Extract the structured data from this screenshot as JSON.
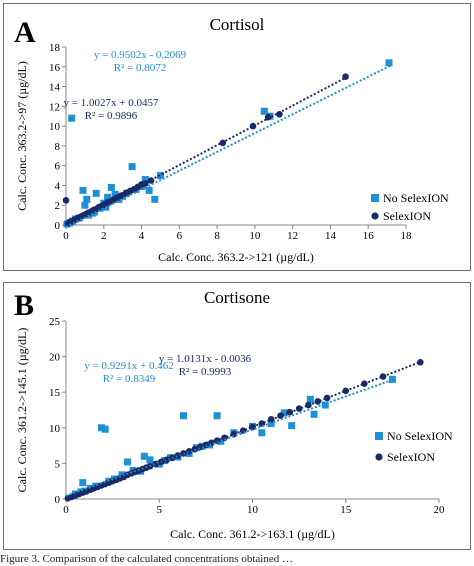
{
  "chart_data": [
    {
      "type": "scatter",
      "panel_letter": "A",
      "title": "Cortisol",
      "xlabel": "Calc. Conc. 363.2->121 (µg/dL)",
      "ylabel": "Calc. Conc. 363.2->97 (µg/dL)",
      "xlim": [
        0,
        18
      ],
      "ylim": [
        0,
        18
      ],
      "xticks": [
        0,
        2,
        4,
        6,
        8,
        10,
        12,
        14,
        16,
        18
      ],
      "yticks": [
        0,
        2,
        4,
        6,
        8,
        10,
        12,
        14,
        16,
        18
      ],
      "grid": false,
      "legend_position": "right",
      "series": [
        {
          "name": "No SelexION",
          "color": "#1f8fd6",
          "marker": "square",
          "trendline": {
            "slope": 0.9502,
            "intercept": -0.2069,
            "equation": "y = 0.9502x - 0.2069",
            "r2": "R² = 0.8072"
          },
          "points": [
            [
              0.3,
              10.8
            ],
            [
              0.05,
              0.1
            ],
            [
              0.2,
              0.2
            ],
            [
              0.35,
              0.4
            ],
            [
              0.5,
              0.6
            ],
            [
              0.7,
              0.7
            ],
            [
              0.9,
              3.5
            ],
            [
              1.0,
              2.0
            ],
            [
              1.1,
              2.6
            ],
            [
              1.2,
              1.0
            ],
            [
              1.4,
              1.2
            ],
            [
              1.6,
              3.2
            ],
            [
              1.8,
              1.7
            ],
            [
              2.0,
              2.2
            ],
            [
              2.2,
              2.8
            ],
            [
              2.4,
              3.8
            ],
            [
              2.6,
              3.1
            ],
            [
              2.8,
              2.6
            ],
            [
              3.0,
              2.9
            ],
            [
              3.2,
              3.2
            ],
            [
              3.5,
              5.9
            ],
            [
              3.7,
              3.6
            ],
            [
              4.0,
              3.9
            ],
            [
              4.2,
              4.6
            ],
            [
              4.4,
              3.5
            ],
            [
              4.7,
              2.6
            ],
            [
              5.0,
              5.0
            ],
            [
              10.5,
              11.5
            ],
            [
              10.8,
              11.0
            ],
            [
              17.1,
              16.4
            ],
            [
              1.5,
              1.3
            ],
            [
              2.1,
              1.8
            ]
          ]
        },
        {
          "name": "SelexION",
          "color": "#1a2a66",
          "marker": "circle",
          "trendline": {
            "slope": 1.0027,
            "intercept": 0.0457,
            "equation": "y = 1.0027x + 0.0457",
            "r2": "R² = 0.9896"
          },
          "points": [
            [
              0.0,
              2.5
            ],
            [
              0.1,
              0.15
            ],
            [
              0.2,
              0.3
            ],
            [
              0.3,
              0.35
            ],
            [
              0.4,
              0.45
            ],
            [
              0.5,
              0.55
            ],
            [
              0.6,
              0.7
            ],
            [
              0.7,
              0.75
            ],
            [
              0.8,
              0.85
            ],
            [
              0.9,
              0.95
            ],
            [
              1.0,
              1.05
            ],
            [
              1.1,
              1.15
            ],
            [
              1.2,
              1.25
            ],
            [
              1.3,
              1.3
            ],
            [
              1.4,
              1.45
            ],
            [
              1.5,
              1.55
            ],
            [
              1.6,
              1.6
            ],
            [
              1.7,
              1.75
            ],
            [
              1.8,
              1.85
            ],
            [
              1.9,
              1.9
            ],
            [
              2.0,
              2.05
            ],
            [
              2.1,
              2.1
            ],
            [
              2.2,
              2.3
            ],
            [
              2.3,
              2.35
            ],
            [
              2.4,
              2.4
            ],
            [
              2.5,
              2.55
            ],
            [
              2.6,
              2.6
            ],
            [
              2.7,
              2.75
            ],
            [
              2.8,
              2.8
            ],
            [
              2.9,
              2.95
            ],
            [
              3.0,
              3.0
            ],
            [
              3.2,
              3.25
            ],
            [
              3.4,
              3.45
            ],
            [
              3.6,
              3.6
            ],
            [
              3.8,
              3.85
            ],
            [
              4.0,
              4.1
            ],
            [
              4.2,
              4.2
            ],
            [
              4.5,
              4.5
            ],
            [
              8.3,
              8.3
            ],
            [
              9.9,
              10.0
            ],
            [
              10.7,
              10.9
            ],
            [
              11.3,
              11.2
            ],
            [
              14.8,
              15.0
            ]
          ]
        }
      ]
    },
    {
      "type": "scatter",
      "panel_letter": "B",
      "title": "Cortisone",
      "xlabel": "Calc. Conc. 361.2->163.1 (µg/dL)",
      "ylabel": "Calc. Conc. 361.2->145.1 (µg/dL)",
      "xlim": [
        0,
        20
      ],
      "ylim": [
        0,
        25
      ],
      "xticks": [
        0,
        5,
        10,
        15,
        20
      ],
      "yticks": [
        0,
        5,
        10,
        15,
        20,
        25
      ],
      "grid": false,
      "legend_position": "right",
      "series": [
        {
          "name": "No SelexION",
          "color": "#1f8fd6",
          "marker": "square",
          "trendline": {
            "slope": 0.9291,
            "intercept": 0.462,
            "equation": "y = 0.9291x + 0.462",
            "r2": "R² = 0.8349"
          },
          "points": [
            [
              0.5,
              0.7
            ],
            [
              0.8,
              1.0
            ],
            [
              0.9,
              2.3
            ],
            [
              1.0,
              1.1
            ],
            [
              1.3,
              1.5
            ],
            [
              1.6,
              1.8
            ],
            [
              1.9,
              10.0
            ],
            [
              2.1,
              9.8
            ],
            [
              2.3,
              2.5
            ],
            [
              2.6,
              2.8
            ],
            [
              3.0,
              3.4
            ],
            [
              3.3,
              5.2
            ],
            [
              3.6,
              4.0
            ],
            [
              4.0,
              3.9
            ],
            [
              4.2,
              6.0
            ],
            [
              4.5,
              5.5
            ],
            [
              5.0,
              4.9
            ],
            [
              5.3,
              5.4
            ],
            [
              5.6,
              5.8
            ],
            [
              6.0,
              5.9
            ],
            [
              6.3,
              11.7
            ],
            [
              6.6,
              6.4
            ],
            [
              7.0,
              7.2
            ],
            [
              7.3,
              7.4
            ],
            [
              7.7,
              7.6
            ],
            [
              8.1,
              11.7
            ],
            [
              8.3,
              8.1
            ],
            [
              9.0,
              9.3
            ],
            [
              10.0,
              10.2
            ],
            [
              10.5,
              9.3
            ],
            [
              11.0,
              10.6
            ],
            [
              11.7,
              12.1
            ],
            [
              12.1,
              10.3
            ],
            [
              13.1,
              14.0
            ],
            [
              13.3,
              11.9
            ],
            [
              13.9,
              13.2
            ],
            [
              17.5,
              16.8
            ]
          ]
        },
        {
          "name": "SelexION",
          "color": "#1a2a66",
          "marker": "circle",
          "trendline": {
            "slope": 1.0131,
            "intercept": -0.0036,
            "equation": "y = 1.0131x - 0.0036",
            "r2": "R² = 0.9993"
          },
          "points": [
            [
              0.1,
              0.1
            ],
            [
              0.3,
              0.3
            ],
            [
              0.5,
              0.5
            ],
            [
              0.7,
              0.7
            ],
            [
              0.9,
              0.9
            ],
            [
              1.1,
              1.1
            ],
            [
              1.3,
              1.3
            ],
            [
              1.5,
              1.5
            ],
            [
              1.7,
              1.7
            ],
            [
              1.9,
              1.9
            ],
            [
              2.1,
              2.1
            ],
            [
              2.3,
              2.3
            ],
            [
              2.5,
              2.5
            ],
            [
              2.7,
              2.7
            ],
            [
              2.9,
              2.9
            ],
            [
              3.1,
              3.1
            ],
            [
              3.3,
              3.4
            ],
            [
              3.5,
              3.6
            ],
            [
              3.7,
              3.8
            ],
            [
              3.9,
              4.0
            ],
            [
              4.1,
              4.2
            ],
            [
              4.3,
              4.4
            ],
            [
              4.5,
              4.6
            ],
            [
              4.8,
              4.9
            ],
            [
              5.1,
              5.2
            ],
            [
              5.4,
              5.5
            ],
            [
              5.7,
              5.8
            ],
            [
              6.0,
              6.1
            ],
            [
              6.3,
              6.4
            ],
            [
              6.6,
              6.7
            ],
            [
              6.9,
              7.0
            ],
            [
              7.2,
              7.3
            ],
            [
              7.5,
              7.6
            ],
            [
              7.8,
              7.9
            ],
            [
              8.1,
              8.2
            ],
            [
              8.5,
              8.6
            ],
            [
              9.0,
              9.1
            ],
            [
              9.5,
              9.6
            ],
            [
              10.0,
              10.1
            ],
            [
              10.5,
              10.6
            ],
            [
              11.0,
              11.2
            ],
            [
              11.5,
              11.7
            ],
            [
              12.0,
              12.2
            ],
            [
              12.5,
              12.7
            ],
            [
              13.0,
              13.2
            ],
            [
              13.5,
              13.7
            ],
            [
              14.0,
              14.2
            ],
            [
              15.0,
              15.2
            ],
            [
              16.0,
              16.2
            ],
            [
              17.0,
              17.2
            ],
            [
              19.0,
              19.2
            ]
          ]
        }
      ]
    }
  ],
  "caption_text": "Figure 3. Comparison of the calculated concentrations obtained …"
}
